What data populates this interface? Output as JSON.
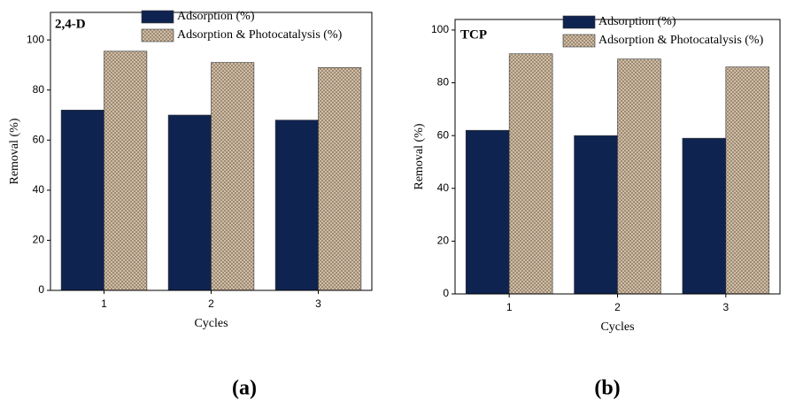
{
  "chart_data": [
    {
      "type": "bar",
      "title": "2,4-D",
      "panel_label": "(a)",
      "xlabel": "Cycles",
      "ylabel": "Removal (%)",
      "categories": [
        "1",
        "2",
        "3"
      ],
      "series": [
        {
          "name": "Adsorption (%)",
          "color": "#0f2350",
          "values": [
            72,
            70,
            68
          ]
        },
        {
          "name": "Adsorption & Photocatalysis (%)",
          "color": "#cbb69b",
          "pattern": "crosshatch",
          "values": [
            95.5,
            91,
            89
          ]
        }
      ],
      "ylim": [
        0,
        111
      ],
      "yticks": [
        0,
        20,
        40,
        60,
        80,
        100
      ],
      "legend": "top"
    },
    {
      "type": "bar",
      "title": "TCP",
      "panel_label": "(b)",
      "xlabel": "Cycles",
      "ylabel": "Removal (%)",
      "categories": [
        "1",
        "2",
        "3"
      ],
      "series": [
        {
          "name": "Adsorption (%)",
          "color": "#0f2350",
          "values": [
            62,
            60,
            59
          ]
        },
        {
          "name": "Adsorption & Photocatalysis (%)",
          "color": "#cbb69b",
          "pattern": "crosshatch",
          "values": [
            91,
            89,
            86
          ]
        }
      ],
      "ylim": [
        0,
        104
      ],
      "yticks": [
        0,
        20,
        40,
        60,
        80,
        100
      ],
      "legend": "top"
    }
  ]
}
